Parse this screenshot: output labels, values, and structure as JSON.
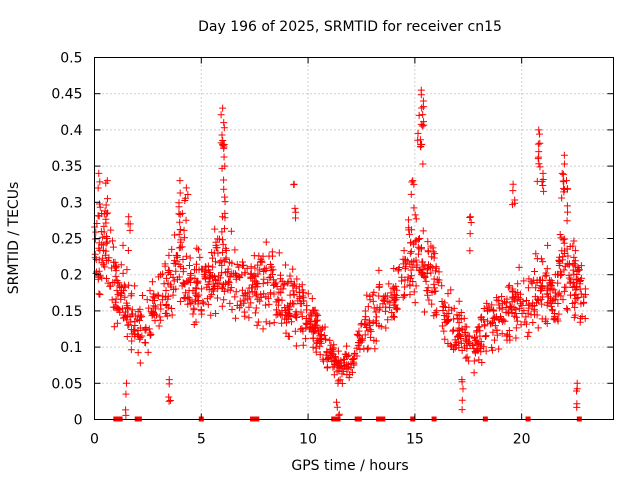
{
  "chart_data": {
    "type": "scatter",
    "title": "Day 196 of 2025, SRMTID for receiver cn15",
    "xlabel": "GPS time / hours",
    "ylabel": "SRMTID / TECUs",
    "xlim": [
      0,
      24.3
    ],
    "ylim": [
      0,
      0.5
    ],
    "xticks": [
      0,
      5,
      10,
      15,
      20
    ],
    "xtick_labels": [
      "0",
      "5",
      "10",
      "15",
      "20"
    ],
    "yticks": [
      0,
      0.05,
      0.1,
      0.15,
      0.2,
      0.25,
      0.3,
      0.35,
      0.4,
      0.45,
      0.5
    ],
    "ytick_labels": [
      "0",
      "0.05",
      "0.1",
      "0.15",
      "0.2",
      "0.25",
      "0.3",
      "0.35",
      "0.4",
      "0.45",
      "0.5"
    ],
    "grid": true,
    "marker": "+",
    "color": "#ff0000",
    "series": [
      {
        "name": "SRMTID",
        "envelope_x": [
          0.0,
          0.5,
          1.0,
          1.5,
          2.0,
          2.5,
          3.0,
          3.5,
          4.0,
          4.5,
          5.0,
          5.5,
          6.0,
          6.5,
          7.0,
          7.5,
          8.0,
          8.5,
          9.0,
          9.5,
          10.0,
          10.5,
          11.0,
          11.5,
          12.0,
          12.5,
          13.0,
          13.5,
          14.0,
          14.5,
          15.0,
          15.5,
          16.0,
          16.5,
          17.0,
          17.5,
          18.0,
          18.5,
          19.0,
          19.5,
          20.0,
          20.5,
          21.0,
          21.5,
          22.0,
          22.5,
          23.0
        ],
        "center": [
          0.22,
          0.25,
          0.18,
          0.16,
          0.12,
          0.14,
          0.16,
          0.19,
          0.22,
          0.19,
          0.17,
          0.2,
          0.22,
          0.19,
          0.18,
          0.19,
          0.2,
          0.18,
          0.17,
          0.16,
          0.14,
          0.12,
          0.09,
          0.07,
          0.08,
          0.12,
          0.14,
          0.16,
          0.17,
          0.2,
          0.23,
          0.21,
          0.18,
          0.14,
          0.12,
          0.1,
          0.11,
          0.13,
          0.14,
          0.15,
          0.16,
          0.17,
          0.19,
          0.17,
          0.21,
          0.19,
          0.16
        ],
        "spread": [
          0.07,
          0.06,
          0.07,
          0.06,
          0.05,
          0.05,
          0.05,
          0.05,
          0.07,
          0.06,
          0.06,
          0.06,
          0.07,
          0.06,
          0.05,
          0.06,
          0.06,
          0.05,
          0.06,
          0.05,
          0.04,
          0.03,
          0.03,
          0.02,
          0.03,
          0.04,
          0.05,
          0.05,
          0.05,
          0.06,
          0.08,
          0.06,
          0.05,
          0.05,
          0.04,
          0.04,
          0.04,
          0.05,
          0.05,
          0.05,
          0.05,
          0.06,
          0.07,
          0.05,
          0.09,
          0.06,
          0.05
        ],
        "peaks": [
          {
            "x": 0.2,
            "y": 0.34
          },
          {
            "x": 0.6,
            "y": 0.33
          },
          {
            "x": 1.6,
            "y": 0.28
          },
          {
            "x": 4.0,
            "y": 0.33
          },
          {
            "x": 4.3,
            "y": 0.32
          },
          {
            "x": 6.0,
            "y": 0.43
          },
          {
            "x": 6.05,
            "y": 0.41
          },
          {
            "x": 6.0,
            "y": 0.38
          },
          {
            "x": 6.1,
            "y": 0.35
          },
          {
            "x": 9.35,
            "y": 0.325
          },
          {
            "x": 15.3,
            "y": 0.455
          },
          {
            "x": 15.4,
            "y": 0.44
          },
          {
            "x": 15.2,
            "y": 0.42
          },
          {
            "x": 15.3,
            "y": 0.38
          },
          {
            "x": 14.9,
            "y": 0.33
          },
          {
            "x": 17.6,
            "y": 0.28
          },
          {
            "x": 19.6,
            "y": 0.325
          },
          {
            "x": 20.8,
            "y": 0.4
          },
          {
            "x": 20.8,
            "y": 0.37
          },
          {
            "x": 21.0,
            "y": 0.34
          },
          {
            "x": 22.0,
            "y": 0.365
          },
          {
            "x": 21.9,
            "y": 0.34
          },
          {
            "x": 22.1,
            "y": 0.33
          },
          {
            "x": 1.5,
            "y": 0.05
          },
          {
            "x": 3.5,
            "y": 0.055
          },
          {
            "x": 11.4,
            "y": 0.05
          },
          {
            "x": 22.6,
            "y": 0.05
          },
          {
            "x": 17.2,
            "y": 0.055
          }
        ],
        "zero_markers_x": [
          1.0,
          1.2,
          2.0,
          2.1,
          5.0,
          7.4,
          7.6,
          11.2,
          11.4,
          12.3,
          12.4,
          13.3,
          13.5,
          14.9,
          15.9,
          18.3,
          20.3,
          22.7
        ]
      }
    ]
  }
}
